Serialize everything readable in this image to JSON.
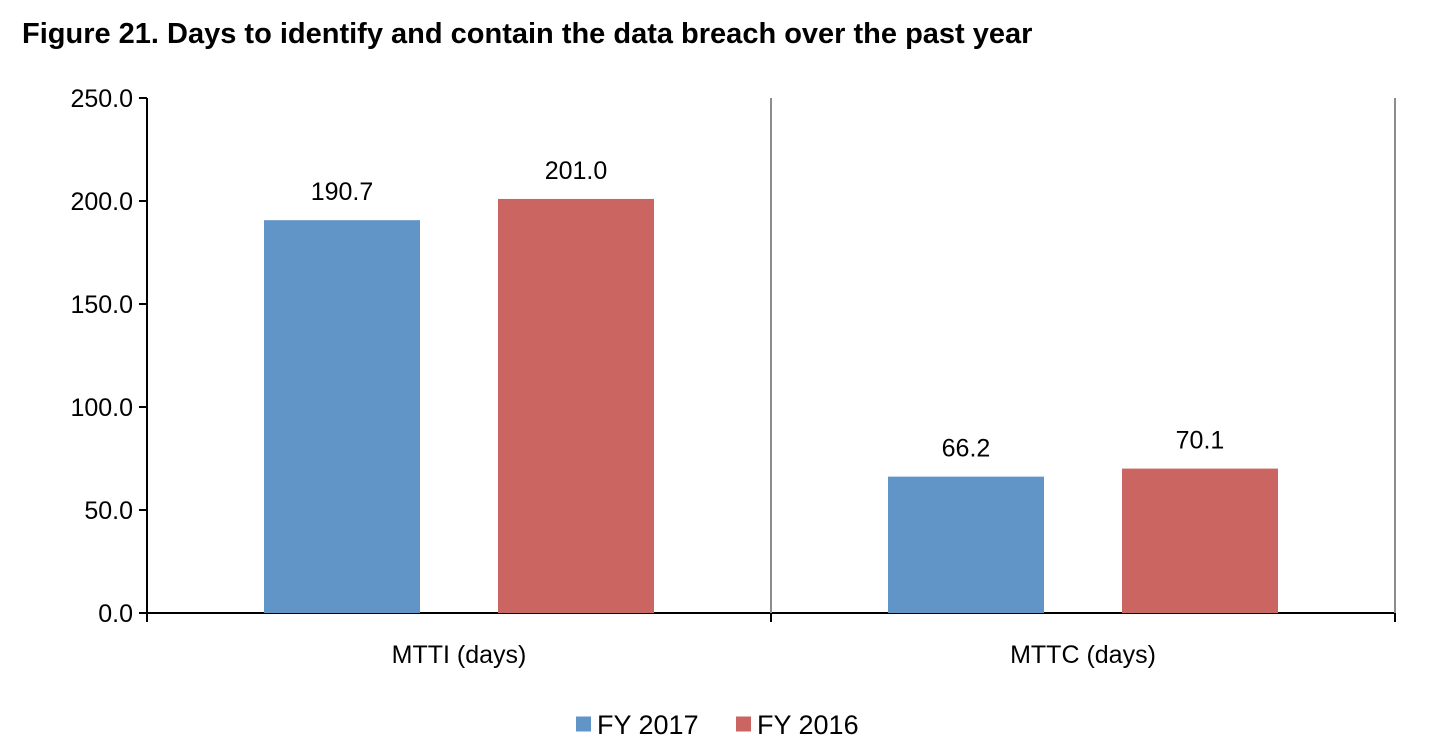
{
  "chart_data": {
    "type": "bar",
    "title": "Figure 21. Days to identify and contain the data breach over the past year",
    "xlabel": "",
    "ylabel": "",
    "categories": [
      "MTTI (days)",
      "MTTC (days)"
    ],
    "series": [
      {
        "name": "FY 2017",
        "values": [
          190.7,
          66.2
        ],
        "labels": [
          "190.7",
          "66.2"
        ],
        "color": "#6195c8"
      },
      {
        "name": "FY 2016",
        "values": [
          201.0,
          70.1
        ],
        "labels": [
          "201.0",
          "70.1"
        ],
        "color": "#cb6561"
      }
    ],
    "ylim": [
      0,
      250
    ],
    "yticks": [
      0,
      50,
      100,
      150,
      200,
      250
    ],
    "ytick_labels": [
      "0.0",
      "50.0",
      "100.0",
      "150.0",
      "200.0",
      "250.0"
    ],
    "grid": false,
    "category_separators": true,
    "legend_position": "bottom"
  }
}
